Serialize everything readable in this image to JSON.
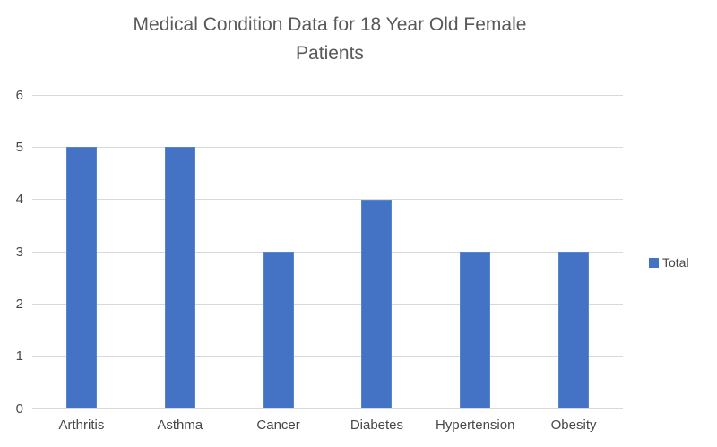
{
  "chart": {
    "legend": {
      "label": "Total",
      "position": "right"
    },
    "colors": {
      "bar": "#4472C4",
      "bar_edge": "#5585cb",
      "title_text": "#595959",
      "axis_text": "#474747",
      "gridline": "#D9D9D9",
      "background": "#FFFFFF"
    }
  },
  "chart_data": {
    "type": "bar",
    "title": "Medical Condition Data for 18 Year Old Female Patients",
    "categories": [
      "Arthritis",
      "Asthma",
      "Cancer",
      "Diabetes",
      "Hypertension",
      "Obesity"
    ],
    "series": [
      {
        "name": "Total",
        "values": [
          5,
          5,
          3,
          4,
          3,
          3
        ]
      }
    ],
    "xlabel": "",
    "ylabel": "",
    "ylim": [
      0,
      6
    ],
    "yticks": [
      0,
      1,
      2,
      3,
      4,
      5,
      6
    ],
    "grid": true,
    "legend_position": "right"
  }
}
